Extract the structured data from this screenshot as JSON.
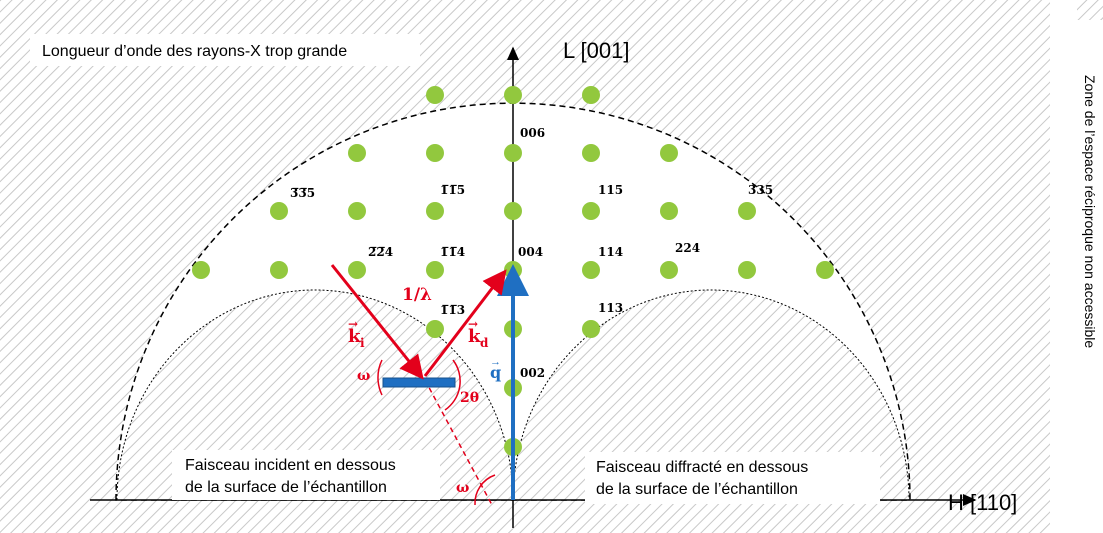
{
  "axes": {
    "vertical": "L [001]",
    "horizontal": "H [110]"
  },
  "notes": {
    "top": "Longueur d’onde des rayons-X trop grande",
    "incident": [
      "Faisceau incident en dessous",
      "de la surface de l’échantillon"
    ],
    "diffracted": [
      "Faisceau diffracté en dessous",
      "de la surface de l’échantillon"
    ],
    "side": "Zone de l’espace réciproque non accessible"
  },
  "reflections": [
    "006",
    "3̅3̅5",
    "1̅1̅5",
    "115",
    "335",
    "2̅2̅4",
    "1̅1̅4",
    "004",
    "114",
    "224",
    "1̅1̅3",
    "113",
    "002"
  ],
  "vectors": {
    "ki": "k",
    "ki_sub": "i",
    "kd": "k",
    "kd_sub": "d",
    "q": "q",
    "inv_lambda": "1/λ"
  },
  "angles": {
    "omega": "ω",
    "two_theta": "2θ",
    "omega_bottom": "ω"
  }
}
